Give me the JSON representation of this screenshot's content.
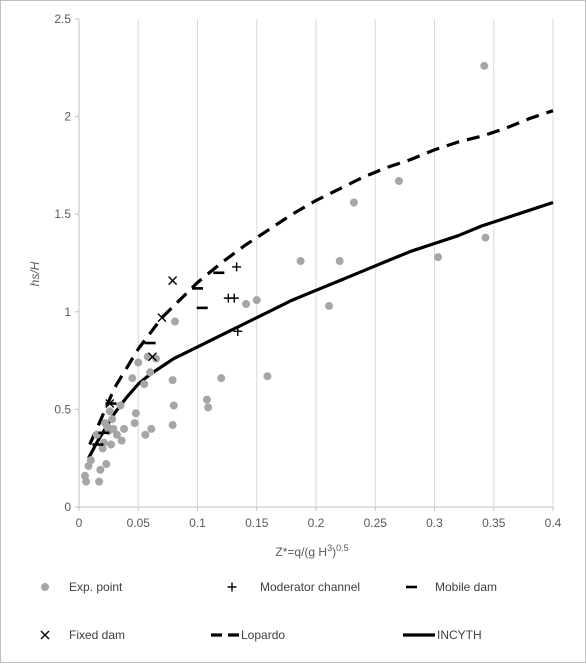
{
  "chart_data": {
    "type": "scatter",
    "xlabel": "Z*=q/(g H",
    "xlabel_sup": "3",
    "xlabel_tail": ")",
    "xlabel_exp": "0.5",
    "ylabel": "hs/H",
    "xlim": [
      0,
      0.4
    ],
    "ylim": [
      0,
      2.5
    ],
    "xticks": [
      0,
      0.05,
      0.1,
      0.15,
      0.2,
      0.25,
      0.3,
      0.35,
      0.4
    ],
    "xtick_labels": [
      "0",
      "0.05",
      "0.1",
      "0.15",
      "0.2",
      "0.25",
      "0.3",
      "0.35",
      "0.4"
    ],
    "yticks": [
      0,
      0.5,
      1,
      1.5,
      2,
      2.5
    ],
    "ytick_labels": [
      "0",
      "0.5",
      "1",
      "1.5",
      "2",
      "2.5"
    ],
    "grid": "vertical",
    "legend_position": "bottom",
    "series": [
      {
        "name": "Exp. point",
        "marker": "circle",
        "color": "#a6a6a6",
        "points": [
          [
            0.005,
            0.16
          ],
          [
            0.006,
            0.13
          ],
          [
            0.008,
            0.21
          ],
          [
            0.01,
            0.24
          ],
          [
            0.015,
            0.37
          ],
          [
            0.017,
            0.13
          ],
          [
            0.018,
            0.19
          ],
          [
            0.02,
            0.3
          ],
          [
            0.021,
            0.33
          ],
          [
            0.022,
            0.43
          ],
          [
            0.023,
            0.22
          ],
          [
            0.024,
            0.41
          ],
          [
            0.025,
            0.39
          ],
          [
            0.026,
            0.49
          ],
          [
            0.027,
            0.32
          ],
          [
            0.028,
            0.45
          ],
          [
            0.029,
            0.4
          ],
          [
            0.032,
            0.37
          ],
          [
            0.035,
            0.52
          ],
          [
            0.036,
            0.34
          ],
          [
            0.038,
            0.4
          ],
          [
            0.045,
            0.66
          ],
          [
            0.047,
            0.43
          ],
          [
            0.048,
            0.48
          ],
          [
            0.05,
            0.74
          ],
          [
            0.055,
            0.63
          ],
          [
            0.056,
            0.37
          ],
          [
            0.058,
            0.77
          ],
          [
            0.06,
            0.69
          ],
          [
            0.061,
            0.4
          ],
          [
            0.065,
            0.76
          ],
          [
            0.079,
            0.65
          ],
          [
            0.079,
            0.42
          ],
          [
            0.08,
            0.52
          ],
          [
            0.081,
            0.95
          ],
          [
            0.108,
            0.55
          ],
          [
            0.109,
            0.51
          ],
          [
            0.12,
            0.66
          ],
          [
            0.141,
            1.04
          ],
          [
            0.15,
            1.06
          ],
          [
            0.159,
            0.67
          ],
          [
            0.187,
            1.26
          ],
          [
            0.211,
            1.03
          ],
          [
            0.22,
            1.26
          ],
          [
            0.232,
            1.56
          ],
          [
            0.27,
            1.67
          ],
          [
            0.303,
            1.28
          ],
          [
            0.342,
            2.26
          ],
          [
            0.343,
            1.38
          ]
        ]
      },
      {
        "name": "Moderator channel",
        "marker": "plus",
        "color": "#000000",
        "points": [
          [
            0.126,
            1.07
          ],
          [
            0.131,
            1.07
          ],
          [
            0.133,
            1.23
          ],
          [
            0.134,
            0.9
          ]
        ]
      },
      {
        "name": "Mobile dam",
        "marker": "dash",
        "color": "#000000",
        "points": [
          [
            0.016,
            0.32
          ],
          [
            0.021,
            0.38
          ],
          [
            0.027,
            0.53
          ],
          [
            0.06,
            0.84
          ],
          [
            0.1,
            1.12
          ],
          [
            0.104,
            1.02
          ],
          [
            0.118,
            1.2
          ]
        ]
      },
      {
        "name": "Fixed dam",
        "marker": "x",
        "color": "#000000",
        "points": [
          [
            0.026,
            0.53
          ],
          [
            0.062,
            0.77
          ],
          [
            0.07,
            0.97
          ],
          [
            0.079,
            1.16
          ]
        ]
      },
      {
        "name": "Lopardo",
        "marker": "line-dashed",
        "color": "#000000",
        "points": [
          [
            0.009,
            0.32
          ],
          [
            0.015,
            0.4
          ],
          [
            0.02,
            0.47
          ],
          [
            0.025,
            0.54
          ],
          [
            0.03,
            0.61
          ],
          [
            0.04,
            0.71
          ],
          [
            0.05,
            0.81
          ],
          [
            0.06,
            0.89
          ],
          [
            0.07,
            0.97
          ],
          [
            0.08,
            1.03
          ],
          [
            0.09,
            1.09
          ],
          [
            0.1,
            1.15
          ],
          [
            0.12,
            1.25
          ],
          [
            0.14,
            1.34
          ],
          [
            0.16,
            1.42
          ],
          [
            0.18,
            1.5
          ],
          [
            0.2,
            1.57
          ],
          [
            0.22,
            1.63
          ],
          [
            0.24,
            1.69
          ],
          [
            0.26,
            1.74
          ],
          [
            0.28,
            1.78
          ],
          [
            0.3,
            1.83
          ],
          [
            0.32,
            1.87
          ],
          [
            0.34,
            1.9
          ],
          [
            0.36,
            1.94
          ],
          [
            0.38,
            1.99
          ],
          [
            0.4,
            2.03
          ]
        ]
      },
      {
        "name": "INCYTH",
        "marker": "line-solid",
        "color": "#000000",
        "points": [
          [
            0.008,
            0.25
          ],
          [
            0.015,
            0.33
          ],
          [
            0.02,
            0.38
          ],
          [
            0.025,
            0.43
          ],
          [
            0.03,
            0.48
          ],
          [
            0.04,
            0.56
          ],
          [
            0.05,
            0.63
          ],
          [
            0.06,
            0.68
          ],
          [
            0.07,
            0.72
          ],
          [
            0.08,
            0.76
          ],
          [
            0.09,
            0.79
          ],
          [
            0.1,
            0.82
          ],
          [
            0.12,
            0.88
          ],
          [
            0.14,
            0.94
          ],
          [
            0.16,
            1.0
          ],
          [
            0.18,
            1.06
          ],
          [
            0.2,
            1.11
          ],
          [
            0.22,
            1.16
          ],
          [
            0.24,
            1.21
          ],
          [
            0.26,
            1.26
          ],
          [
            0.28,
            1.31
          ],
          [
            0.3,
            1.35
          ],
          [
            0.32,
            1.39
          ],
          [
            0.34,
            1.44
          ],
          [
            0.36,
            1.48
          ],
          [
            0.38,
            1.52
          ],
          [
            0.4,
            1.56
          ]
        ]
      }
    ]
  }
}
